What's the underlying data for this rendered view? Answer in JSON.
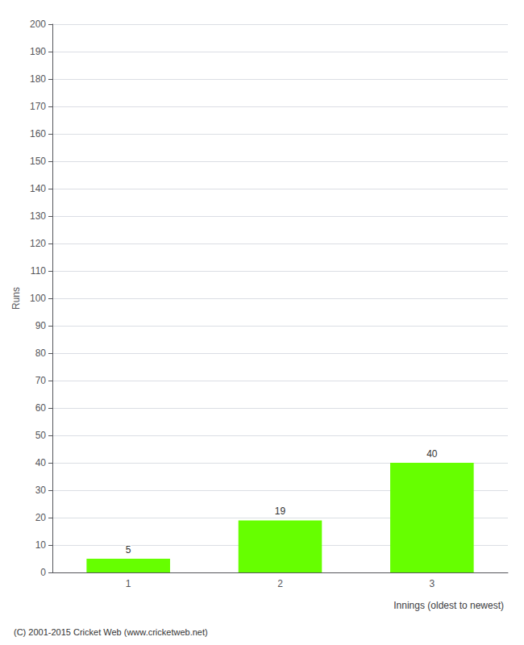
{
  "chart_data": {
    "type": "bar",
    "categories": [
      "1",
      "2",
      "3"
    ],
    "values": [
      5,
      19,
      40
    ],
    "color": "#66ff00",
    "ylabel": "Runs",
    "xlabel": "Innings (oldest to newest)",
    "footer": "(C) 2001-2015 Cricket Web (www.cricketweb.net)",
    "ylim": [
      0,
      200
    ],
    "yticks": [
      0,
      10,
      20,
      30,
      40,
      50,
      60,
      70,
      80,
      90,
      100,
      110,
      120,
      130,
      140,
      150,
      160,
      170,
      180,
      190,
      200
    ],
    "grid": true,
    "data_labels": true
  }
}
